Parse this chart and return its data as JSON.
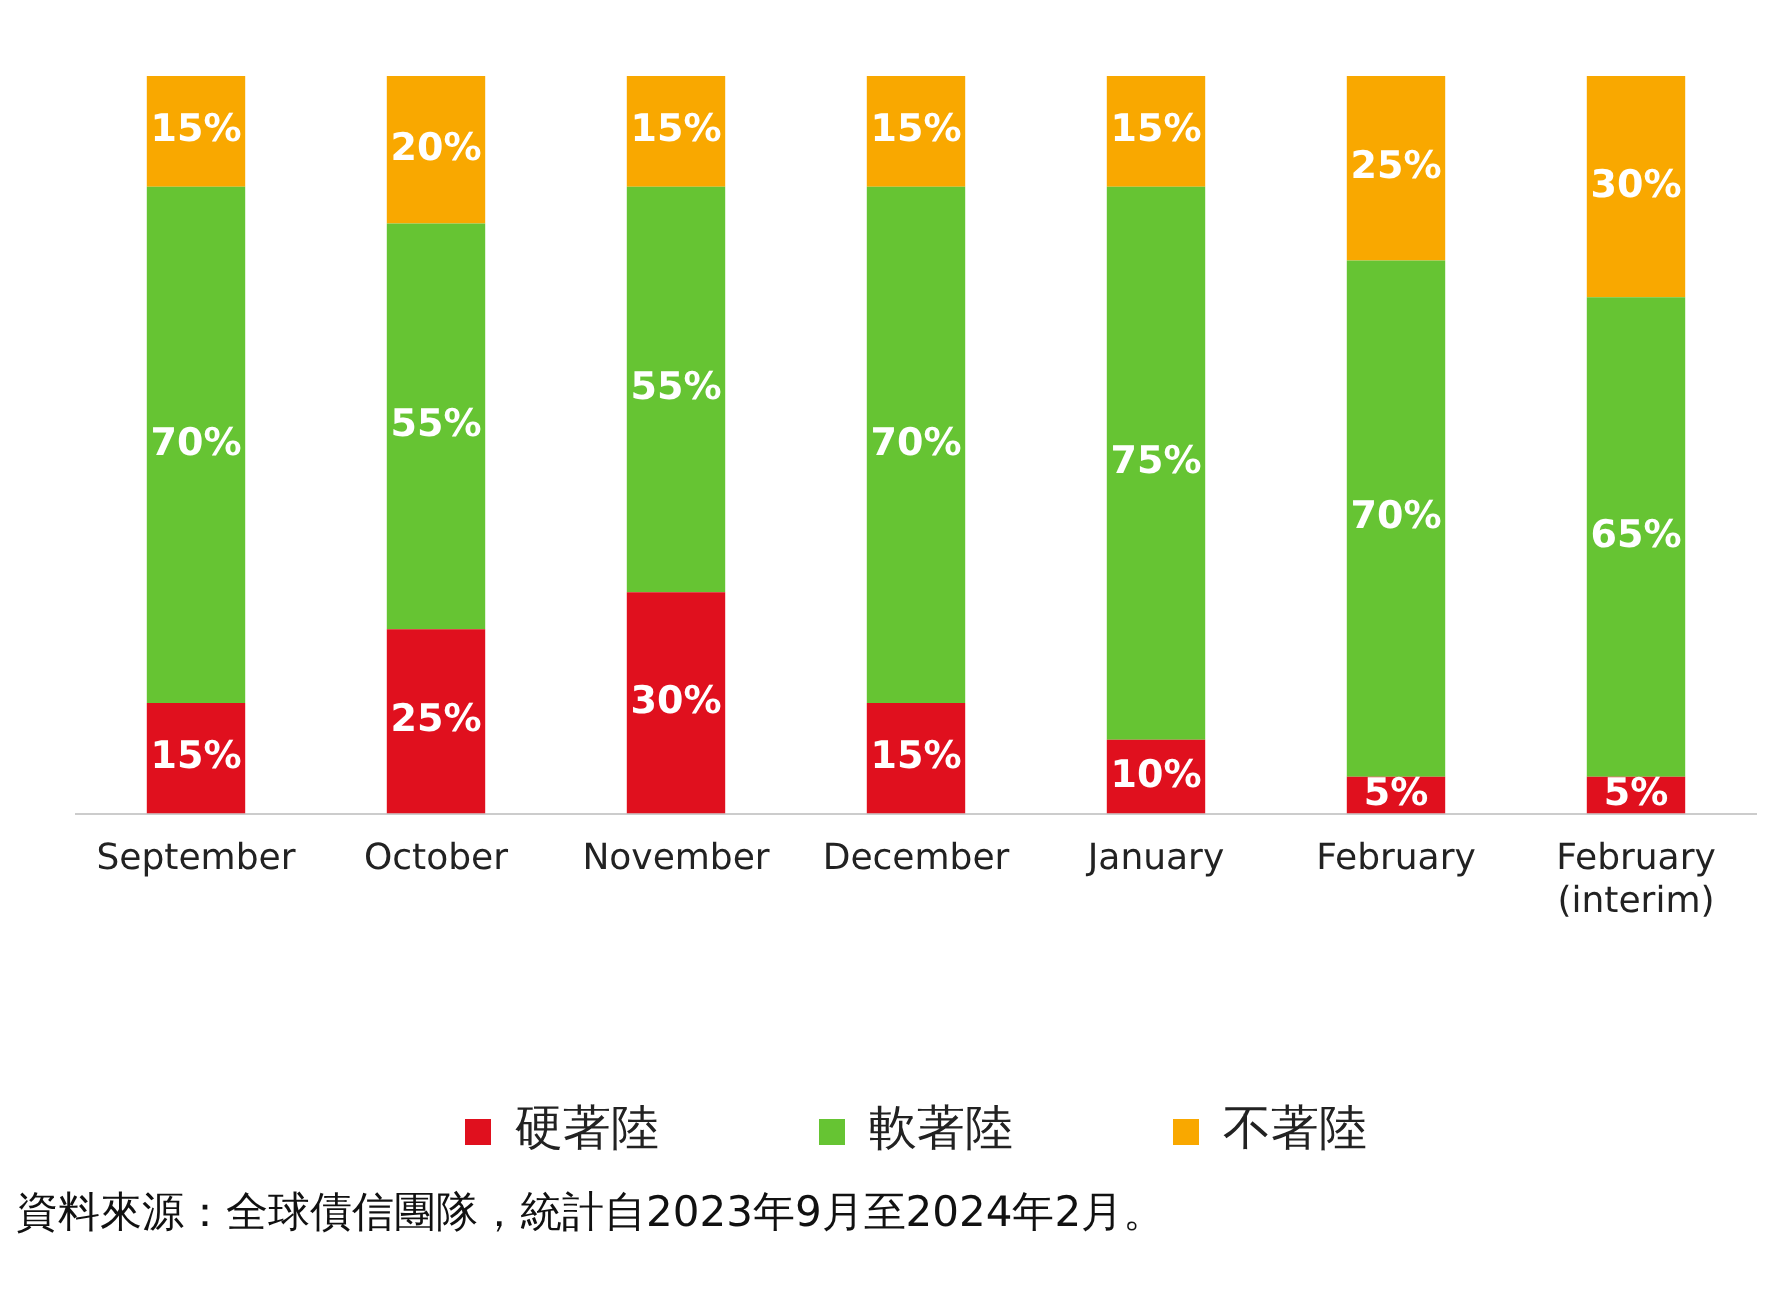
{
  "chart_data": {
    "type": "bar",
    "stacked": true,
    "categories": [
      "September",
      "October",
      "November",
      "December",
      "January",
      "February",
      "February (interim)"
    ],
    "series": [
      {
        "name": "硬著陸",
        "color": "#e0101e",
        "values": [
          15,
          25,
          30,
          15,
          10,
          5,
          5
        ],
        "value_labels": [
          "15%",
          "25%",
          "30%",
          "15%",
          "10%",
          "5%",
          "5%"
        ]
      },
      {
        "name": "軟著陸",
        "color": "#66c433",
        "values": [
          70,
          55,
          55,
          70,
          75,
          70,
          65
        ],
        "value_labels": [
          "70%",
          "55%",
          "55%",
          "70%",
          "75%",
          "70%",
          "65%"
        ]
      },
      {
        "name": "不著陸",
        "color": "#f9a800",
        "values": [
          15,
          20,
          15,
          15,
          15,
          25,
          30
        ],
        "value_labels": [
          "15%",
          "20%",
          "15%",
          "15%",
          "15%",
          "25%",
          "30%"
        ]
      }
    ],
    "tick_labels": "x",
    "grid": false,
    "legend": "bottom",
    "annotations": [
      "資料來源：全球債信團隊，統計自2023年9月至2024年2月。"
    ]
  }
}
